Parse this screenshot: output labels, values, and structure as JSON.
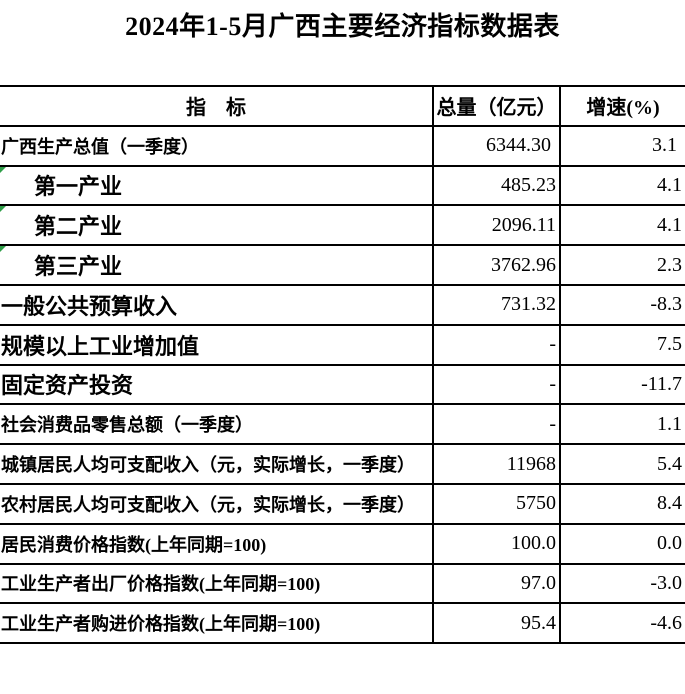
{
  "title": "2024年1-5月广西主要经济指标数据表",
  "table": {
    "headers": {
      "indicator": "指　标",
      "total": "总量（亿元）",
      "growth": "增速(%)"
    },
    "rows": [
      {
        "label": "广西生产总值（一季度）",
        "total": "6344.30 ",
        "growth": "3.1 ",
        "sub": false,
        "flagged": false
      },
      {
        "label": "第一产业",
        "total": "485.23",
        "growth": "4.1",
        "sub": true,
        "flagged": true
      },
      {
        "label": "第二产业",
        "total": "2096.11",
        "growth": "4.1",
        "sub": true,
        "flagged": true
      },
      {
        "label": "第三产业",
        "total": "3762.96",
        "growth": "2.3",
        "sub": true,
        "flagged": true
      },
      {
        "label": "一般公共预算收入",
        "total": "731.32",
        "growth": "-8.3",
        "sub": false,
        "flagged": false
      },
      {
        "label": "规模以上工业增加值",
        "total": "-",
        "growth": "7.5",
        "sub": false,
        "flagged": false
      },
      {
        "label": "固定资产投资",
        "total": "-",
        "growth": "-11.7",
        "sub": false,
        "flagged": false
      },
      {
        "label": "社会消费品零售总额（一季度）",
        "total": "-",
        "growth": "1.1",
        "sub": false,
        "flagged": false
      },
      {
        "label": "城镇居民人均可支配收入（元，实际增长，一季度）",
        "total": "11968",
        "growth": "5.4",
        "sub": false,
        "flagged": false
      },
      {
        "label": "农村居民人均可支配收入（元，实际增长，一季度）",
        "total": "5750",
        "growth": "8.4",
        "sub": false,
        "flagged": false
      },
      {
        "label": "居民消费价格指数(上年同期=100)",
        "total": "100.0",
        "growth": "0.0",
        "sub": false,
        "flagged": false
      },
      {
        "label": "工业生产者出厂价格指数(上年同期=100)",
        "total": "97.0",
        "growth": "-3.0",
        "sub": false,
        "flagged": false
      },
      {
        "label": "工业生产者购进价格指数(上年同期=100)",
        "total": "95.4",
        "growth": "-4.6",
        "sub": false,
        "flagged": false
      }
    ]
  },
  "colors": {
    "background": "#ffffff",
    "text": "#000000",
    "border": "#000000",
    "flag_green": "#2f9e48"
  }
}
